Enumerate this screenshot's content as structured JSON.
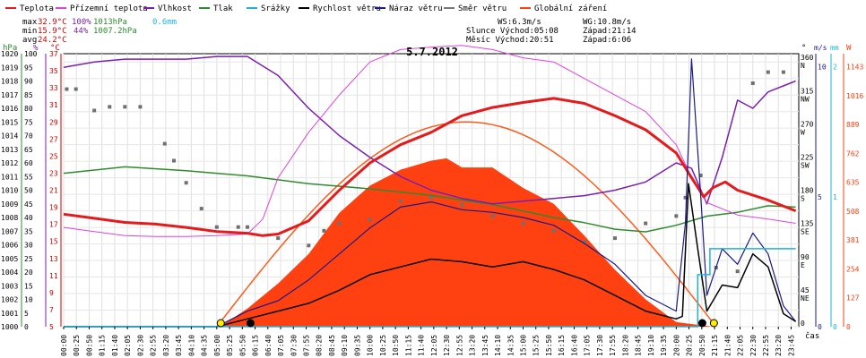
{
  "chart_data": {
    "type": "line",
    "title": "5.7.2012",
    "legend": [
      {
        "label": "Teplota",
        "color": "#e41a1c"
      },
      {
        "label": "Přízemní teplota",
        "color": "#dd44dd"
      },
      {
        "label": "Vlhkost",
        "color": "#7a1fb0"
      },
      {
        "label": "Tlak",
        "color": "#2e8b2e"
      },
      {
        "label": "Srážky",
        "color": "#1eb4d8"
      },
      {
        "label": "Rychlost větru",
        "color": "#000000"
      },
      {
        "label": "Náraz větru",
        "color": "#1a1a8c"
      },
      {
        "label": "Směr větru",
        "color": "#777777"
      },
      {
        "label": "Globální záření",
        "color": "#ff4010"
      }
    ],
    "stats": {
      "max_label": "max",
      "min_label": "min",
      "avg_label": "avg",
      "max_temp": "32.9°C",
      "max_hum": "100%",
      "max_press": "1013hPa",
      "max_rain": "0.6mm",
      "min_temp": "15.9°C",
      "min_hum": "44%",
      "min_press": "1007.2hPa",
      "avg_temp": "24.2°C"
    },
    "info": {
      "ws": "WS:6.3m/s",
      "wg": "WG:10.8m/s",
      "sun": "Slunce Východ:05:08",
      "sun_set": "Západ:21:14",
      "moon": "Měsíc  Východ:20:51",
      "moon_set": "Západ:6:06"
    },
    "axis_units": {
      "hpa": "hPa",
      "pct": "%",
      "degc": "°C",
      "deg": "°",
      "ms": "m/s",
      "mm": "mm",
      "w": "W",
      "cas": "čas"
    },
    "x_ticks": [
      "00:00",
      "00:25",
      "00:50",
      "01:15",
      "01:40",
      "02:05",
      "02:30",
      "02:55",
      "03:20",
      "03:45",
      "04:10",
      "04:35",
      "05:00",
      "05:25",
      "05:50",
      "06:15",
      "06:40",
      "07:05",
      "07:30",
      "07:55",
      "08:20",
      "08:45",
      "09:10",
      "09:35",
      "10:00",
      "10:25",
      "10:50",
      "11:15",
      "11:40",
      "12:05",
      "12:30",
      "12:55",
      "13:20",
      "13:45",
      "14:10",
      "14:35",
      "15:00",
      "15:25",
      "15:50",
      "16:15",
      "16:40",
      "17:05",
      "17:30",
      "17:55",
      "18:20",
      "18:45",
      "19:10",
      "19:35",
      "20:00",
      "20:25",
      "20:50",
      "21:15",
      "21:40",
      "22:05",
      "22:30",
      "22:55",
      "23:20",
      "23:45"
    ],
    "y_pressure_ticks": [
      "1020",
      "1019",
      "1018",
      "1017",
      "1016",
      "1015",
      "1014",
      "1013",
      "1012",
      "1011",
      "1010",
      "1009",
      "1008",
      "1007",
      "1006",
      "1005",
      "1004",
      "1003",
      "1002",
      "1001",
      "1000"
    ],
    "y_humidity_ticks": [
      "100",
      "95",
      "90",
      "85",
      "80",
      "75",
      "70",
      "65",
      "60",
      "55",
      "50",
      "45",
      "40",
      "35",
      "30",
      "25",
      "20",
      "15",
      "10",
      "5",
      "0"
    ],
    "y_temp_ticks": [
      "37",
      "35",
      "33",
      "31",
      "29",
      "27",
      "25",
      "23",
      "21",
      "19",
      "17",
      "15",
      "13",
      "11",
      "9",
      "7",
      "5"
    ],
    "y_dir_ticks": [
      {
        "deg": "360",
        "lab": "N"
      },
      {
        "deg": "315",
        "lab": "NW"
      },
      {
        "deg": "270",
        "lab": "W"
      },
      {
        "deg": "225",
        "lab": "SW"
      },
      {
        "deg": "180",
        "lab": "S"
      },
      {
        "deg": "135",
        "lab": "SE"
      },
      {
        "deg": "90",
        "lab": "E"
      },
      {
        "deg": "45",
        "lab": "NE"
      },
      {
        "deg": "0",
        "lab": ""
      }
    ],
    "y_wind_ticks": [
      "10",
      "5",
      "0"
    ],
    "y_rain_ticks": [
      "2",
      "1",
      "0"
    ],
    "y_rad_ticks": [
      "1143",
      "1016",
      "889",
      "762",
      "635",
      "508",
      "381",
      "254",
      "127",
      "0"
    ],
    "series": {
      "temperature": {
        "ylim": [
          5,
          38
        ],
        "x": [
          0,
          1,
          2,
          3,
          4,
          5,
          6,
          6.5,
          7,
          8,
          9,
          10,
          11,
          12,
          13,
          14,
          15,
          16,
          17,
          18,
          19,
          20,
          20.5,
          20.9,
          21.2,
          21.6,
          22,
          23,
          23.9
        ],
        "y": [
          18.6,
          18.1,
          17.6,
          17.4,
          17.0,
          16.5,
          16.3,
          16.0,
          16.2,
          17.8,
          21.5,
          24.8,
          27.0,
          28.5,
          30.5,
          31.5,
          32.1,
          32.6,
          32.0,
          30.5,
          28.8,
          26.0,
          23.0,
          20.7,
          21.8,
          22.5,
          21.5,
          20.3,
          19.0
        ]
      },
      "ground_temperature": {
        "ylim": [
          5,
          38
        ],
        "x": [
          0,
          1,
          2,
          3,
          4,
          5,
          6,
          6.5,
          7,
          8,
          9,
          10,
          11,
          12,
          13,
          14,
          15,
          16,
          17,
          18,
          19,
          20,
          20.5,
          21,
          22,
          23,
          23.9
        ],
        "y": [
          17.0,
          16.5,
          16.0,
          15.9,
          15.9,
          16.0,
          16.2,
          18.0,
          23.0,
          28.5,
          33.0,
          37.0,
          38.5,
          38.8,
          39.0,
          38.5,
          37.5,
          37.0,
          35.0,
          33.0,
          31.0,
          27.0,
          23.0,
          20.0,
          18.5,
          18.0,
          17.5
        ]
      },
      "humidity": {
        "ylim": [
          0,
          100
        ],
        "x": [
          0,
          1,
          2,
          3,
          4,
          5,
          6,
          7,
          8,
          9,
          10,
          11,
          12,
          13,
          14,
          15,
          16,
          17,
          18,
          19,
          20,
          20.5,
          21,
          21.5,
          22,
          22.5,
          23,
          23.9
        ],
        "y": [
          95,
          97,
          98,
          98,
          98,
          99,
          99,
          92,
          80,
          70,
          62,
          55,
          50,
          47,
          45,
          46,
          47,
          48,
          50,
          53,
          60,
          58,
          45,
          62,
          83,
          80,
          86,
          90
        ]
      },
      "pressure": {
        "ylim": [
          1000,
          1021
        ],
        "x": [
          0,
          2,
          4,
          6,
          8,
          10,
          12,
          14,
          16,
          17,
          18,
          19,
          20,
          21,
          22,
          23,
          23.9
        ],
        "y": [
          1011.8,
          1012.3,
          1012.0,
          1011.6,
          1011.0,
          1010.6,
          1010.1,
          1009.4,
          1008.4,
          1008.0,
          1007.5,
          1007.3,
          1007.8,
          1008.5,
          1008.8,
          1009.3,
          1009.2
        ]
      },
      "rain_mm": {
        "ylim": [
          0,
          2.1
        ],
        "x": [
          0,
          20.2,
          20.7,
          21.05,
          21.1,
          23.9
        ],
        "y": [
          0,
          0,
          0.4,
          0.4,
          0.6,
          0.6
        ]
      },
      "wind_speed": {
        "ylim": [
          0,
          10.5
        ],
        "x": [
          0,
          5,
          6,
          7,
          8,
          9,
          10,
          11,
          12,
          13,
          14,
          15,
          16,
          17,
          18,
          19,
          20,
          20.2,
          20.4,
          20.7,
          21,
          21.5,
          22,
          22.5,
          23,
          23.5,
          23.9
        ],
        "y": [
          0,
          0,
          0.3,
          0.6,
          0.9,
          1.4,
          2.0,
          2.3,
          2.6,
          2.5,
          2.3,
          2.5,
          2.2,
          1.8,
          1.2,
          0.6,
          0.3,
          0.4,
          5.5,
          3.0,
          0.6,
          1.6,
          1.5,
          2.8,
          2.3,
          0.5,
          0.2
        ]
      },
      "wind_gust": {
        "ylim": [
          0,
          10.5
        ],
        "x": [
          0,
          5,
          6,
          7,
          8,
          9,
          10,
          11,
          12,
          13,
          14,
          15,
          16,
          17,
          18,
          19,
          20,
          20.3,
          20.5,
          20.8,
          21,
          21.5,
          22,
          22.5,
          23,
          23.5,
          23.9
        ],
        "y": [
          0,
          0,
          0.6,
          1.0,
          1.8,
          2.8,
          3.8,
          4.6,
          4.8,
          4.5,
          4.4,
          4.2,
          3.9,
          3.2,
          2.4,
          1.2,
          0.6,
          4.0,
          10.3,
          5.0,
          1.2,
          3.0,
          2.4,
          3.6,
          2.8,
          0.8,
          0.2
        ]
      },
      "global_radiation": {
        "ylim": [
          0,
          1200
        ],
        "x": [
          0,
          5.1,
          6,
          7,
          8,
          9,
          10,
          11,
          12,
          12.5,
          13,
          14,
          15,
          16,
          17,
          18,
          19,
          20,
          21.2,
          23.9
        ],
        "y": [
          0,
          0,
          80,
          190,
          320,
          500,
          620,
          690,
          730,
          740,
          700,
          700,
          610,
          540,
          400,
          250,
          120,
          20,
          0,
          0
        ]
      },
      "wind_direction": {
        "ylim": [
          0,
          370
        ],
        "x": [
          0.1,
          0.4,
          1,
          1.5,
          2,
          2.5,
          3.3,
          3.6,
          4,
          4.5,
          5,
          5.7,
          6,
          7,
          8,
          8.5,
          9,
          10,
          11,
          12,
          13,
          14,
          15,
          16,
          17,
          18,
          19,
          20,
          20.3,
          20.8,
          21.3,
          22,
          22.5,
          23,
          23.5
        ],
        "y": [
          322,
          322,
          293,
          298,
          298,
          298,
          248,
          225,
          195,
          160,
          135,
          135,
          135,
          120,
          110,
          130,
          140,
          145,
          170,
          175,
          165,
          150,
          140,
          130,
          115,
          120,
          140,
          150,
          175,
          205,
          80,
          75,
          330,
          345,
          345
        ]
      }
    },
    "markers": {
      "sunrise_h": 5.13,
      "sunset_h": 21.23,
      "moonrise_h": 20.85,
      "moonset_h": 6.1
    }
  }
}
